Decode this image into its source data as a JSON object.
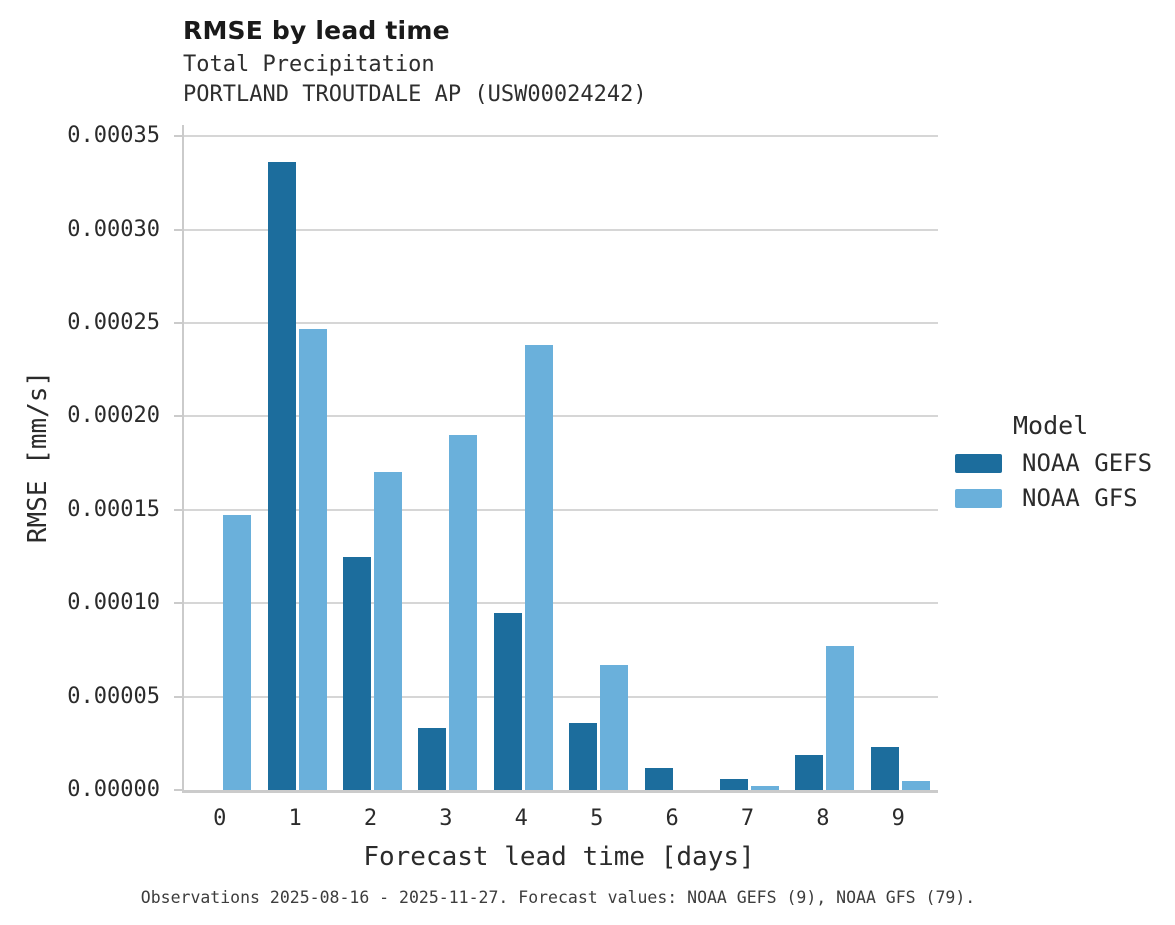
{
  "header": {
    "title": "RMSE by lead time",
    "subtitle_variable": "Total Precipitation",
    "subtitle_station": "PORTLAND TROUTDALE AP (USW00024242)"
  },
  "legend": {
    "title": "Model",
    "entries": [
      {
        "label": "NOAA GEFS",
        "color": "#1c6d9d"
      },
      {
        "label": "NOAA GFS",
        "color": "#6ab0db"
      }
    ]
  },
  "footer": {
    "text": "Observations 2025-08-16 - 2025-11-27. Forecast values: NOAA GEFS (9), NOAA GFS (79)."
  },
  "colors": {
    "gefs_dark_blue": "#1c6d9d",
    "gfs_light_blue": "#6ab0db",
    "gridline": "#d6d6d6",
    "axis_spine": "#cbcbcb",
    "text": "#2b2b2b"
  },
  "chart_data": {
    "type": "bar",
    "title": "RMSE by lead time",
    "subtitle": [
      "Total Precipitation",
      "PORTLAND TROUTDALE AP (USW00024242)"
    ],
    "categories": [
      0,
      1,
      2,
      3,
      4,
      5,
      6,
      7,
      8,
      9
    ],
    "series": [
      {
        "name": "NOAA GEFS",
        "color": "#1c6d9d",
        "values": [
          null,
          0.000336,
          0.000125,
          3.3e-05,
          9.5e-05,
          3.6e-05,
          1.2e-05,
          6e-06,
          1.9e-05,
          2.3e-05
        ]
      },
      {
        "name": "NOAA GFS",
        "color": "#6ab0db",
        "values": [
          0.000147,
          0.000247,
          0.00017,
          0.00019,
          0.000238,
          6.7e-05,
          null,
          2e-06,
          7.7e-05,
          5e-06
        ]
      }
    ],
    "xlabel": "Forecast lead time [days]",
    "ylabel": "RMSE [mm/s]",
    "ylim": [
      0,
      0.000356
    ],
    "yticks": [
      0,
      5e-05,
      0.0001,
      0.00015,
      0.0002,
      0.00025,
      0.0003,
      0.00035
    ],
    "ytick_labels": [
      "0.00000",
      "0.00005",
      "0.00010",
      "0.00015",
      "0.00020",
      "0.00025",
      "0.00030",
      "0.00035"
    ],
    "grid": true,
    "legend_title": "Model",
    "legend_position": "center right",
    "caption": "Observations 2025-08-16 - 2025-11-27. Forecast values: NOAA GEFS (9), NOAA GFS (79)."
  }
}
